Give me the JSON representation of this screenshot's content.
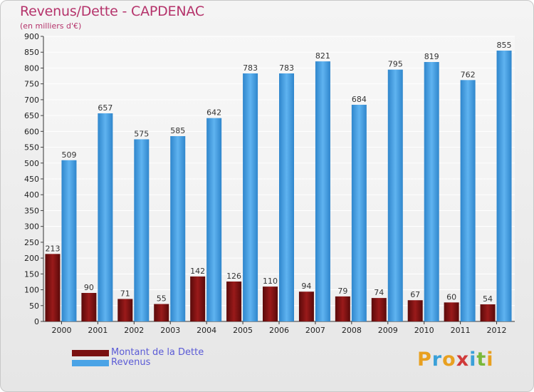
{
  "header": {
    "title": "Revenus/Dette - CAPDENAC",
    "subtitle": "(en milliers d'€)"
  },
  "legend": {
    "items": [
      {
        "label": "Montant de la Dette",
        "color": "#7a1010"
      },
      {
        "label": "Revenus",
        "color": "#4aa3e6"
      }
    ]
  },
  "logo": {
    "letters": [
      "P",
      "r",
      "o",
      "x",
      "i",
      "t",
      "i"
    ],
    "colors": [
      "#e8a020",
      "#3aa0d8",
      "#e8a020",
      "#d03a3a",
      "#3aa0d8",
      "#7ab83a",
      "#e8a020"
    ]
  },
  "chart_data": {
    "type": "bar",
    "categories": [
      "2000",
      "2001",
      "2002",
      "2003",
      "2004",
      "2005",
      "2006",
      "2007",
      "2008",
      "2009",
      "2010",
      "2011",
      "2012"
    ],
    "series": [
      {
        "name": "Montant de la Dette",
        "values": [
          213,
          90,
          71,
          55,
          142,
          126,
          110,
          94,
          79,
          74,
          67,
          60,
          54
        ],
        "color": "#7a1010"
      },
      {
        "name": "Revenus",
        "values": [
          509,
          657,
          575,
          585,
          642,
          783,
          783,
          821,
          684,
          795,
          819,
          762,
          855
        ],
        "color": "#4aa3e6"
      }
    ],
    "ylim": [
      0,
      900
    ],
    "yticks": [
      0,
      50,
      100,
      150,
      200,
      250,
      300,
      350,
      400,
      450,
      500,
      550,
      600,
      650,
      700,
      750,
      800,
      850,
      900
    ],
    "grid": true,
    "legend": "bottom-left"
  }
}
